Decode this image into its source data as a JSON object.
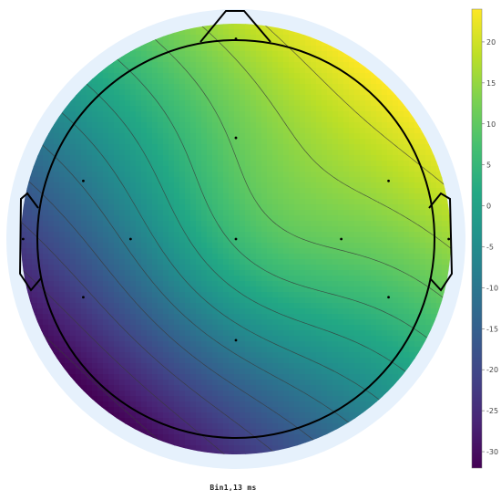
{
  "chart_data": {
    "type": "heatmap",
    "title": "",
    "caption": "Bin1,13 ms",
    "colormap": "viridis",
    "colorbar": {
      "range": [
        -32,
        24
      ],
      "ticks": [
        20,
        15,
        10,
        5,
        0,
        -5,
        -10,
        -15,
        -20,
        -25,
        -30
      ]
    },
    "field_extrema": {
      "min": -32,
      "max": 24
    },
    "contour_levels": [
      -30,
      -25,
      -20,
      -15,
      -10,
      -5,
      0,
      5,
      10,
      15,
      20
    ],
    "electrodes_count": 12,
    "colors": {
      "head_outline": "#000000",
      "outer_ring": "#e6f1fc",
      "contour": "#3a3a3a",
      "electrode": "#000000"
    }
  }
}
